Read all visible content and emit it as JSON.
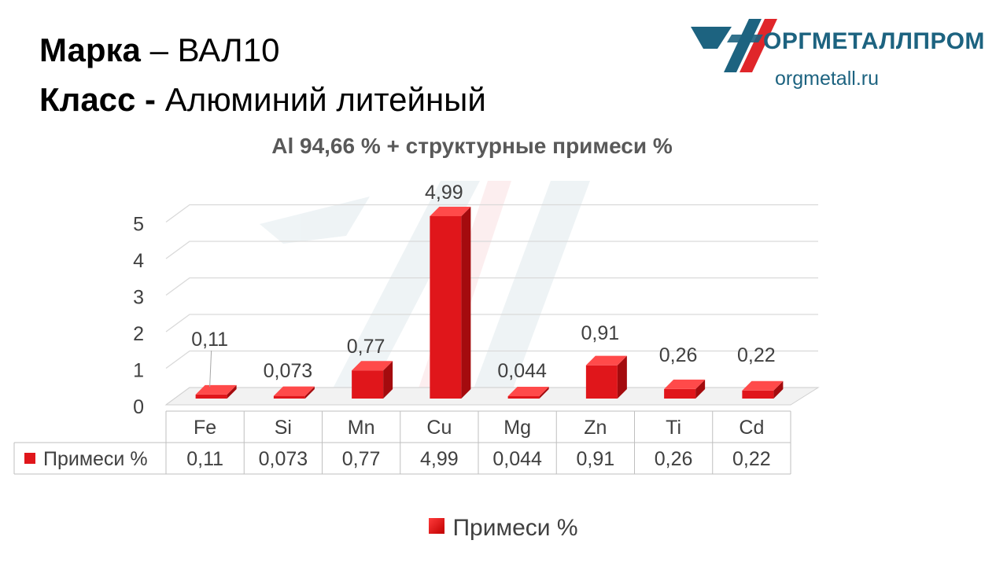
{
  "header": {
    "mark_label": "Марка",
    "mark_value": "– ВАЛ10",
    "class_label": "Класс -",
    "class_value": "Алюминий литейный"
  },
  "logo": {
    "name": "ОРГМЕТАЛЛПРОМ",
    "site": "orgmetall.ru"
  },
  "colors": {
    "bar": "#e0161b",
    "bar_dark": "#a40b0e",
    "bar_light": "#ff4a4a",
    "logo_teal": "#1d6380",
    "logo_red": "#e0262a",
    "grid": "#d9d9d9"
  },
  "chart_data": {
    "type": "bar",
    "title": "Al 94,66 % + структурные примеси %",
    "categories": [
      "Fe",
      "Si",
      "Mn",
      "Cu",
      "Mg",
      "Zn",
      "Ti",
      "Cd"
    ],
    "series": [
      {
        "name": "Примеси %",
        "values": [
          0.11,
          0.073,
          0.77,
          4.99,
          0.044,
          0.91,
          0.26,
          0.22
        ],
        "labels": [
          "0,11",
          "0,073",
          "0,77",
          "4,99",
          "0,044",
          "0,91",
          "0,26",
          "0,22"
        ]
      }
    ],
    "yticks": [
      "0",
      "1",
      "2",
      "3",
      "4",
      "5"
    ],
    "ylim": [
      0,
      5
    ],
    "grid": true,
    "data_table": true,
    "legend": "bottom",
    "style": "3d"
  }
}
